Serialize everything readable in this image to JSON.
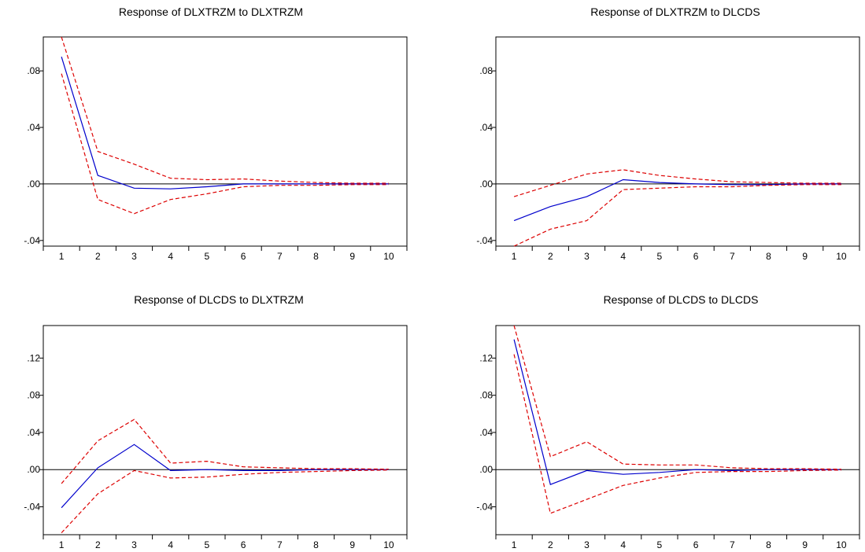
{
  "colors": {
    "impulse": "#0000cc",
    "band": "#dd0000",
    "axis": "#000000",
    "background": "#ffffff"
  },
  "chart_data": [
    {
      "type": "line",
      "title": "Response of DLXTRZM to DLXTRZM",
      "x": [
        1,
        2,
        3,
        4,
        5,
        6,
        7,
        8,
        9,
        10
      ],
      "ylim": [
        -0.044,
        0.104
      ],
      "yticks": [
        ".08",
        ".04",
        ".00",
        "-.04"
      ],
      "ytick_values": [
        0.08,
        0.04,
        0.0,
        -0.04
      ],
      "series": [
        {
          "role": "response",
          "values": [
            0.09,
            0.006,
            -0.003,
            -0.0035,
            -0.002,
            0.0,
            0.0,
            0.0,
            0.0,
            0.0
          ]
        },
        {
          "role": "upper",
          "values": [
            0.104,
            0.023,
            0.014,
            0.004,
            0.003,
            0.0035,
            0.002,
            0.001,
            0.0005,
            0.0005
          ]
        },
        {
          "role": "lower",
          "values": [
            0.078,
            -0.011,
            -0.021,
            -0.011,
            -0.007,
            -0.002,
            -0.001,
            -0.001,
            -0.0005,
            -0.0005
          ]
        }
      ]
    },
    {
      "type": "line",
      "title": "Response of DLXTRZM to DLCDS",
      "x": [
        1,
        2,
        3,
        4,
        5,
        6,
        7,
        8,
        9,
        10
      ],
      "ylim": [
        -0.044,
        0.104
      ],
      "yticks": [
        ".08",
        ".04",
        ".00",
        "-.04"
      ],
      "ytick_values": [
        0.08,
        0.04,
        0.0,
        -0.04
      ],
      "series": [
        {
          "role": "response",
          "values": [
            -0.026,
            -0.016,
            -0.009,
            0.003,
            0.001,
            0.0,
            -0.0005,
            -0.0005,
            0.0,
            0.0
          ]
        },
        {
          "role": "upper",
          "values": [
            -0.009,
            -0.001,
            0.007,
            0.01,
            0.006,
            0.0035,
            0.0015,
            0.001,
            0.0005,
            0.0005
          ]
        },
        {
          "role": "lower",
          "values": [
            -0.044,
            -0.032,
            -0.026,
            -0.004,
            -0.003,
            -0.002,
            -0.002,
            -0.001,
            -0.0005,
            -0.0005
          ]
        }
      ]
    },
    {
      "type": "line",
      "title": "Response of DLCDS to DLXTRZM",
      "x": [
        1,
        2,
        3,
        4,
        5,
        6,
        7,
        8,
        9,
        10
      ],
      "ylim": [
        -0.07,
        0.155
      ],
      "yticks": [
        ".12",
        ".08",
        ".04",
        ".00",
        "-.04"
      ],
      "ytick_values": [
        0.12,
        0.08,
        0.04,
        0.0,
        -0.04
      ],
      "series": [
        {
          "role": "response",
          "values": [
            -0.041,
            0.002,
            0.027,
            -0.001,
            0.0,
            -0.001,
            -0.001,
            0.0,
            0.0,
            0.0
          ]
        },
        {
          "role": "upper",
          "values": [
            -0.015,
            0.031,
            0.054,
            0.007,
            0.009,
            0.003,
            0.002,
            0.001,
            0.001,
            0.0005
          ]
        },
        {
          "role": "lower",
          "values": [
            -0.068,
            -0.026,
            -0.001,
            -0.009,
            -0.008,
            -0.005,
            -0.003,
            -0.002,
            -0.001,
            -0.0005
          ]
        }
      ]
    },
    {
      "type": "line",
      "title": "Response of DLCDS to DLCDS",
      "x": [
        1,
        2,
        3,
        4,
        5,
        6,
        7,
        8,
        9,
        10
      ],
      "ylim": [
        -0.07,
        0.155
      ],
      "yticks": [
        ".12",
        ".08",
        ".04",
        ".00",
        "-.04"
      ],
      "ytick_values": [
        0.12,
        0.08,
        0.04,
        0.0,
        -0.04
      ],
      "series": [
        {
          "role": "response",
          "values": [
            0.14,
            -0.016,
            -0.001,
            -0.005,
            -0.003,
            0.0,
            -0.001,
            0.0,
            0.0,
            0.0
          ]
        },
        {
          "role": "upper",
          "values": [
            0.155,
            0.014,
            0.03,
            0.006,
            0.005,
            0.005,
            0.002,
            0.001,
            0.001,
            0.0005
          ]
        },
        {
          "role": "lower",
          "values": [
            0.124,
            -0.047,
            -0.032,
            -0.017,
            -0.009,
            -0.003,
            -0.002,
            -0.002,
            -0.001,
            -0.0005
          ]
        }
      ]
    }
  ]
}
